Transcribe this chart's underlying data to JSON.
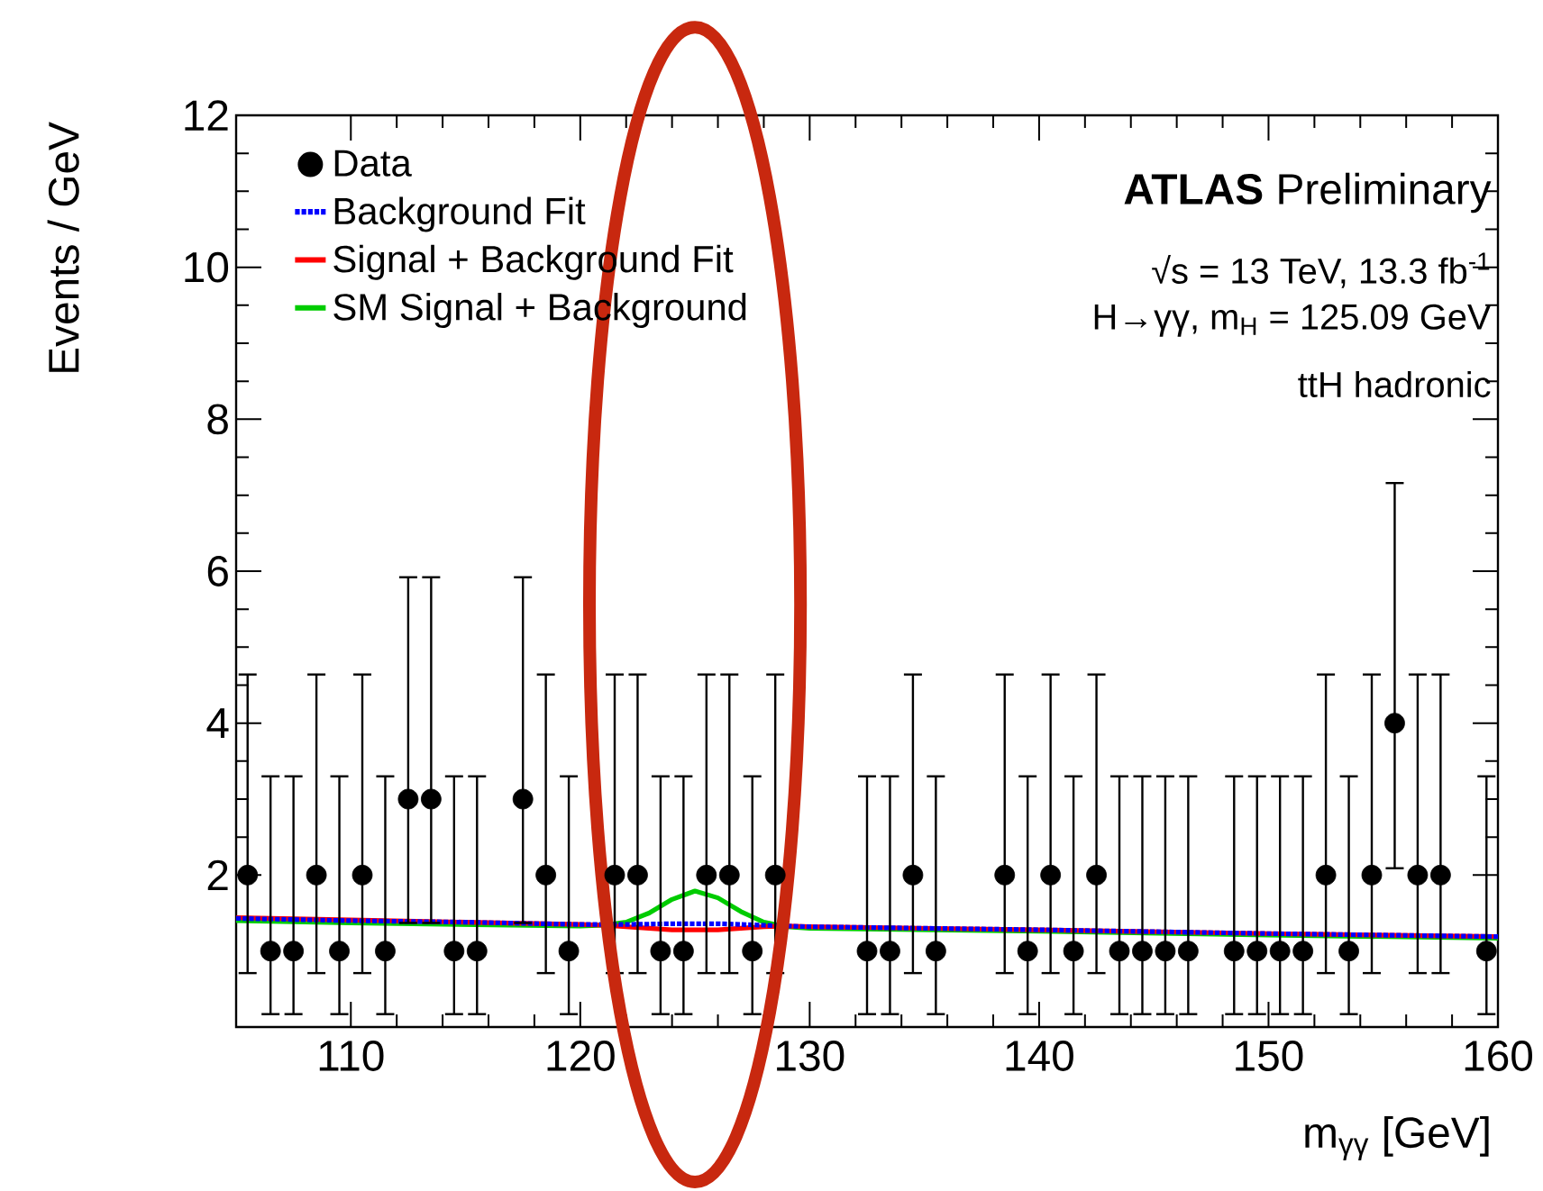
{
  "chart_data": {
    "type": "scatter",
    "xlabel": "m$_{γγ}$ [GeV]",
    "ylabel": "Events / GeV",
    "xlim": [
      105,
      160
    ],
    "ylim": [
      0,
      12
    ],
    "xticks": [
      110,
      120,
      130,
      140,
      150,
      160
    ],
    "yticks": [
      2,
      4,
      6,
      8,
      10,
      12
    ],
    "legend": "top left",
    "marker": "circle",
    "annotations": [
      "**ATLAS** Preliminary",
      "√s = 13 TeV, 13.3 fb$^{-1}$",
      "H→γγ, m$_{H}$ = 125.09 GeV",
      "ttH hadronic"
    ],
    "series": [
      {
        "name": "Data",
        "type": "scatter",
        "color": "#000000",
        "x": [
          105.5,
          106.5,
          107.5,
          108.5,
          109.5,
          110.5,
          111.5,
          112.5,
          113.5,
          114.5,
          115.5,
          117.5,
          118.5,
          119.5,
          121.5,
          122.5,
          123.5,
          124.5,
          125.5,
          126.5,
          127.5,
          128.5,
          132.5,
          133.5,
          134.5,
          135.5,
          138.5,
          139.5,
          140.5,
          141.5,
          142.5,
          143.5,
          144.5,
          145.5,
          146.5,
          148.5,
          149.5,
          150.5,
          151.5,
          152.5,
          153.5,
          154.5,
          155.5,
          156.5,
          157.5,
          159.5
        ],
        "values": [
          2,
          1,
          1,
          2,
          1,
          2,
          1,
          3,
          3,
          1,
          1,
          3,
          2,
          1,
          2,
          2,
          1,
          1,
          2,
          2,
          1,
          2,
          1,
          1,
          2,
          1,
          2,
          1,
          2,
          1,
          2,
          1,
          1,
          1,
          1,
          1,
          1,
          1,
          1,
          2,
          1,
          2,
          4,
          2,
          2,
          1
        ],
        "errors": [
          [
            0.71,
            4.64
          ],
          [
            0.17,
            3.3
          ],
          [
            0.17,
            3.3
          ],
          [
            0.71,
            4.64
          ],
          [
            0.17,
            3.3
          ],
          [
            0.71,
            4.64
          ],
          [
            0.17,
            3.3
          ],
          [
            1.37,
            5.92
          ],
          [
            1.37,
            5.92
          ],
          [
            0.17,
            3.3
          ],
          [
            0.17,
            3.3
          ],
          [
            1.37,
            5.92
          ],
          [
            0.71,
            4.64
          ],
          [
            0.17,
            3.3
          ],
          [
            0.71,
            4.64
          ],
          [
            0.71,
            4.64
          ],
          [
            0.17,
            3.3
          ],
          [
            0.17,
            3.3
          ],
          [
            0.71,
            4.64
          ],
          [
            0.71,
            4.64
          ],
          [
            0.17,
            3.3
          ],
          [
            0.71,
            4.64
          ],
          [
            0.17,
            3.3
          ],
          [
            0.17,
            3.3
          ],
          [
            0.71,
            4.64
          ],
          [
            0.17,
            3.3
          ],
          [
            0.71,
            4.64
          ],
          [
            0.17,
            3.3
          ],
          [
            0.71,
            4.64
          ],
          [
            0.17,
            3.3
          ],
          [
            0.71,
            4.64
          ],
          [
            0.17,
            3.3
          ],
          [
            0.17,
            3.3
          ],
          [
            0.17,
            3.3
          ],
          [
            0.17,
            3.3
          ],
          [
            0.17,
            3.3
          ],
          [
            0.17,
            3.3
          ],
          [
            0.17,
            3.3
          ],
          [
            0.17,
            3.3
          ],
          [
            0.71,
            4.64
          ],
          [
            0.17,
            3.3
          ],
          [
            0.71,
            4.64
          ],
          [
            2.09,
            7.16
          ],
          [
            0.71,
            4.64
          ],
          [
            0.71,
            4.64
          ],
          [
            0.17,
            3.3
          ]
        ]
      },
      {
        "name": "Background Fit",
        "type": "line",
        "marker": "none",
        "line_style": "dotted",
        "color": "#0000ff",
        "x": [
          105,
          110,
          115,
          120,
          122,
          124,
          125,
          126,
          128,
          130,
          140,
          150,
          160
        ],
        "values": [
          1.43,
          1.4,
          1.38,
          1.35,
          1.35,
          1.36,
          1.36,
          1.36,
          1.34,
          1.32,
          1.28,
          1.23,
          1.19
        ]
      },
      {
        "name": "Signal + Background Fit",
        "type": "line",
        "marker": "none",
        "line_style": "solid",
        "color": "#ff0000",
        "x": [
          105,
          110,
          115,
          120,
          121,
          122,
          123,
          124,
          125,
          126,
          127,
          128,
          129,
          130,
          140,
          150,
          160
        ],
        "values": [
          1.44,
          1.41,
          1.38,
          1.35,
          1.34,
          1.32,
          1.3,
          1.28,
          1.28,
          1.28,
          1.3,
          1.32,
          1.33,
          1.32,
          1.28,
          1.23,
          1.19
        ]
      },
      {
        "name": "SM Signal + Background",
        "type": "line",
        "marker": "none",
        "line_style": "solid",
        "color": "#00cc00",
        "x": [
          105,
          110,
          115,
          120,
          121,
          122,
          123,
          124,
          125,
          126,
          127,
          128,
          129,
          130,
          140,
          150,
          160
        ],
        "values": [
          1.4,
          1.37,
          1.35,
          1.33,
          1.34,
          1.38,
          1.5,
          1.68,
          1.79,
          1.7,
          1.52,
          1.38,
          1.32,
          1.3,
          1.26,
          1.21,
          1.17
        ]
      }
    ]
  }
}
